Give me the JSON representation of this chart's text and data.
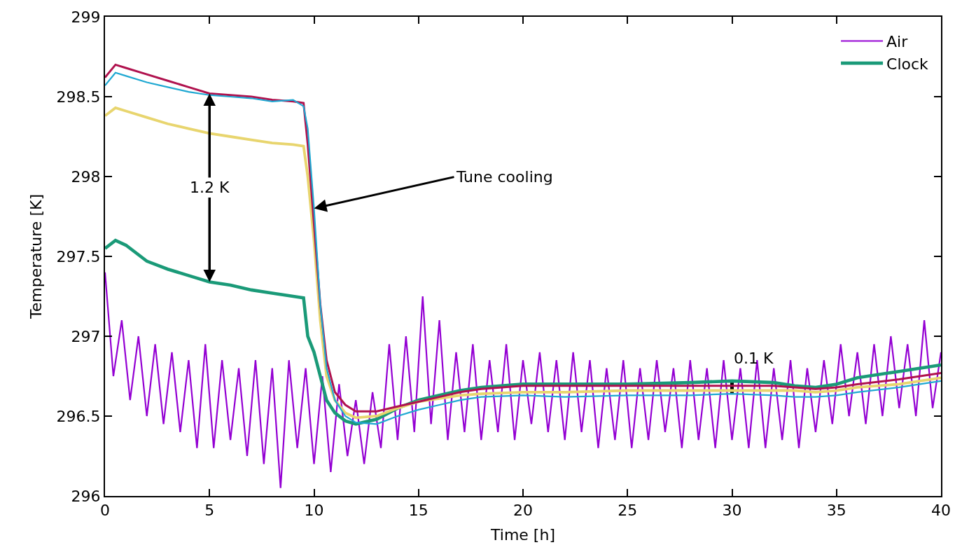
{
  "chart_data": {
    "type": "line",
    "xlabel": "Time [h]",
    "ylabel": "Temperature [K]",
    "xlim": [
      0,
      40
    ],
    "xticks": [
      0,
      5,
      10,
      15,
      20,
      25,
      30,
      35,
      40
    ],
    "ylim": [
      296,
      299
    ],
    "yticks": [
      296,
      296.5,
      297,
      297.5,
      298,
      298.5,
      299
    ],
    "grid": false,
    "legend": "top right",
    "marker": "none",
    "line_style": "solid",
    "series": [
      {
        "name": "Air",
        "color": "#9400d3",
        "x": [
          0,
          0.4,
          0.8,
          1.2,
          1.6,
          2.0,
          2.4,
          2.8,
          3.2,
          3.6,
          4.0,
          4.4,
          4.8,
          5.2,
          5.6,
          6.0,
          6.4,
          6.8,
          7.2,
          7.6,
          8.0,
          8.4,
          8.8,
          9.2,
          9.6,
          10.0,
          10.4,
          10.8,
          11.2,
          11.6,
          12.0,
          12.4,
          12.8,
          13.2,
          13.6,
          14.0,
          14.4,
          14.8,
          15.2,
          15.6,
          16.0,
          16.4,
          16.8,
          17.2,
          17.6,
          18.0,
          18.4,
          18.8,
          19.2,
          19.6,
          20.0,
          20.4,
          20.8,
          21.2,
          21.6,
          22.0,
          22.4,
          22.8,
          23.2,
          23.6,
          24.0,
          24.4,
          24.8,
          25.2,
          25.6,
          26.0,
          26.4,
          26.8,
          27.2,
          27.6,
          28.0,
          28.4,
          28.8,
          29.2,
          29.6,
          30.0,
          30.4,
          30.8,
          31.2,
          31.6,
          32.0,
          32.4,
          32.8,
          33.2,
          33.6,
          34.0,
          34.4,
          34.8,
          35.2,
          35.6,
          36.0,
          36.4,
          36.8,
          37.2,
          37.6,
          38.0,
          38.4,
          38.8,
          39.2,
          39.6,
          40.0
        ],
        "values": [
          297.4,
          296.75,
          297.1,
          296.6,
          297.0,
          296.5,
          296.95,
          296.45,
          296.9,
          296.4,
          296.85,
          296.3,
          296.95,
          296.3,
          296.85,
          296.35,
          296.8,
          296.25,
          296.85,
          296.2,
          296.8,
          296.05,
          296.85,
          296.3,
          296.8,
          296.2,
          296.75,
          296.15,
          296.7,
          296.25,
          296.6,
          296.2,
          296.65,
          296.3,
          296.95,
          296.35,
          297.0,
          296.4,
          297.25,
          296.45,
          297.1,
          296.35,
          296.9,
          296.4,
          296.95,
          296.35,
          296.85,
          296.4,
          296.95,
          296.35,
          296.85,
          296.45,
          296.9,
          296.4,
          296.85,
          296.35,
          296.9,
          296.4,
          296.85,
          296.3,
          296.8,
          296.35,
          296.85,
          296.3,
          296.8,
          296.35,
          296.85,
          296.4,
          296.8,
          296.3,
          296.85,
          296.35,
          296.8,
          296.3,
          296.85,
          296.35,
          296.8,
          296.3,
          296.85,
          296.3,
          296.8,
          296.35,
          296.85,
          296.3,
          296.8,
          296.4,
          296.85,
          296.45,
          296.95,
          296.5,
          296.9,
          296.45,
          296.95,
          296.5,
          297.0,
          296.55,
          296.95,
          296.5,
          297.1,
          296.55,
          296.9
        ]
      },
      {
        "name": "Clock",
        "color": "#1a9a78",
        "x": [
          0,
          0.5,
          1,
          2,
          3,
          4,
          5,
          6,
          7,
          8,
          9,
          9.5,
          9.7,
          10,
          10.3,
          10.6,
          11,
          11.5,
          12,
          13,
          14,
          15,
          16,
          17,
          18,
          20,
          22,
          25,
          28,
          30,
          32,
          33,
          34,
          35,
          36,
          38,
          40
        ],
        "values": [
          297.55,
          297.6,
          297.57,
          297.47,
          297.42,
          297.38,
          297.34,
          297.32,
          297.29,
          297.27,
          297.25,
          297.24,
          297.0,
          296.9,
          296.75,
          296.6,
          296.52,
          296.47,
          296.45,
          296.48,
          296.55,
          296.6,
          296.63,
          296.66,
          296.68,
          296.7,
          296.7,
          296.7,
          296.71,
          296.72,
          296.71,
          296.69,
          296.68,
          296.7,
          296.74,
          296.78,
          296.82
        ]
      },
      {
        "color": "#e8d56e",
        "x": [
          0,
          0.5,
          1,
          2,
          3,
          4,
          5,
          6,
          7,
          8,
          9,
          9.5,
          9.7,
          10,
          10.3,
          10.6,
          11,
          11.5,
          12,
          13,
          14,
          15,
          16,
          17,
          18,
          20,
          22,
          25,
          28,
          30,
          32,
          33,
          34,
          35,
          36,
          38,
          40
        ],
        "values": [
          298.38,
          298.43,
          298.41,
          298.37,
          298.33,
          298.3,
          298.27,
          298.25,
          298.23,
          298.21,
          298.2,
          298.19,
          298.0,
          297.6,
          297.1,
          296.75,
          296.6,
          296.52,
          296.49,
          296.5,
          296.55,
          296.59,
          296.61,
          296.63,
          296.64,
          296.65,
          296.65,
          296.66,
          296.66,
          296.66,
          296.66,
          296.66,
          296.65,
          296.66,
          296.68,
          296.7,
          296.74
        ]
      },
      {
        "color": "#b0124e",
        "x": [
          0,
          0.5,
          1,
          2,
          3,
          4,
          5,
          6,
          7,
          8,
          9,
          9.5,
          9.7,
          10,
          10.3,
          10.6,
          11,
          11.5,
          12,
          13,
          14,
          15,
          16,
          17,
          18,
          20,
          22,
          25,
          28,
          30,
          32,
          33,
          34,
          35,
          36,
          38,
          40
        ],
        "values": [
          298.62,
          298.7,
          298.68,
          298.64,
          298.6,
          298.56,
          298.52,
          298.51,
          298.5,
          298.48,
          298.47,
          298.46,
          298.2,
          297.7,
          297.2,
          296.85,
          296.65,
          296.57,
          296.53,
          296.53,
          296.56,
          296.59,
          296.62,
          296.65,
          296.67,
          296.69,
          296.69,
          296.69,
          296.69,
          296.69,
          296.69,
          296.68,
          296.67,
          296.68,
          296.7,
          296.73,
          296.77
        ]
      },
      {
        "color": "#1fa8d2",
        "x": [
          0,
          0.5,
          1,
          2,
          3,
          4,
          5,
          6,
          7,
          8,
          9,
          9.5,
          9.7,
          10,
          10.3,
          10.6,
          11,
          11.5,
          12,
          13,
          14,
          15,
          16,
          17,
          18,
          20,
          22,
          25,
          28,
          30,
          32,
          33,
          34,
          35,
          36,
          38,
          40
        ],
        "values": [
          298.57,
          298.65,
          298.63,
          298.59,
          298.56,
          298.53,
          298.51,
          298.5,
          298.49,
          298.47,
          298.48,
          298.44,
          298.3,
          297.8,
          297.2,
          296.8,
          296.6,
          296.5,
          296.46,
          296.45,
          296.5,
          296.54,
          296.57,
          296.6,
          296.62,
          296.63,
          296.62,
          296.63,
          296.63,
          296.64,
          296.63,
          296.62,
          296.62,
          296.63,
          296.65,
          296.68,
          296.72
        ]
      }
    ],
    "annotations": [
      {
        "text": "1.2 K",
        "x": 5,
        "y": 297.34
      },
      {
        "text": "Tune cooling",
        "x": 10,
        "y": 297.8
      },
      {
        "text": "0.1 K",
        "x": 30,
        "y": 296.72
      }
    ]
  }
}
